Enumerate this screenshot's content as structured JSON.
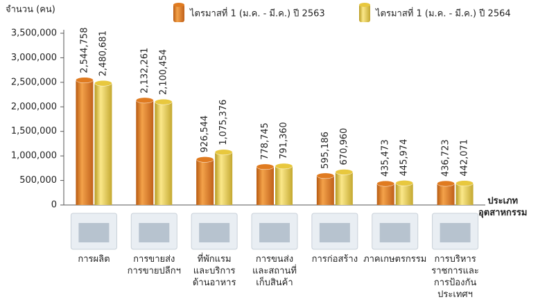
{
  "chart_data": {
    "type": "bar",
    "y_label": "จำนวน (คน)",
    "x_label": "ประเภท\nอุตสาหกรรม",
    "categories": [
      "การผลิต",
      "การขายส่ง\nการขายปลีกฯ",
      "ที่พักแรม\nและบริการ\nด้านอาหาร",
      "การขนส่ง\nและสถานที่\nเก็บสินค้า",
      "การก่อสร้าง",
      "ภาคเกษตรกรรม",
      "การบริหาร\nราชการและ\nการป้องกัน\nประเทศฯ"
    ],
    "series": [
      {
        "name": "ไตรมาสที่ 1 (ม.ค. - มี.ค.) ปี 2563",
        "color": "#e07b20",
        "label_color": "#a3302a",
        "values": [
          2544758,
          2132261,
          926544,
          778745,
          595186,
          435473,
          436723
        ],
        "value_labels": [
          "2,544,758",
          "2,132,261",
          "926,544",
          "778,745",
          "595,186",
          "435,473",
          "436,723"
        ]
      },
      {
        "name": "ไตรมาสที่ 1 (ม.ค. - มี.ค.) ปี 2564",
        "color": "#e8c83e",
        "label_color": "#7a6320",
        "values": [
          2480681,
          2100454,
          1075376,
          791360,
          670960,
          445974,
          442071
        ],
        "value_labels": [
          "2,480,681",
          "2,100,454",
          "1,075,376",
          "791,360",
          "670,960",
          "445,974",
          "442,071"
        ]
      }
    ],
    "ylim": [
      0,
      3500000
    ],
    "yticks": [
      0,
      {
        "value": 500000,
        "label": "500,000"
      },
      {
        "value": 1000000,
        "label": "1,000,000"
      },
      {
        "value": 1500000,
        "label": "1,500,000"
      },
      {
        "value": 2000000,
        "label": "2,000,000"
      },
      {
        "value": 2500000,
        "label": "2,500,000"
      },
      {
        "value": 3000000,
        "label": "3,000,000"
      },
      {
        "value": 3500000,
        "label": "3,500,000"
      }
    ]
  }
}
